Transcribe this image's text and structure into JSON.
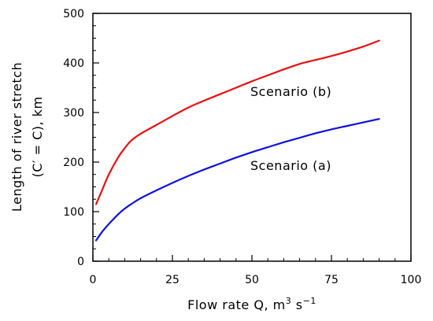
{
  "chart_data": {
    "type": "line",
    "title": "",
    "xlabel": "Flow rate Q, m",
    "xlabel_unit_super": "3",
    "xlabel_unit_mid": " s",
    "xlabel_unit_super2": "−1",
    "ylabel_line1": "Length of river stretch",
    "ylabel_line2": "(C′ = C), km",
    "xlim": [
      0,
      100
    ],
    "ylim": [
      0,
      500
    ],
    "xticks": [
      0,
      25,
      50,
      75,
      100
    ],
    "yticks": [
      0,
      100,
      200,
      300,
      400,
      500
    ],
    "x_minor_step": 5,
    "y_minor_step": 25,
    "grid": false,
    "series": [
      {
        "name": "Scenario (a)",
        "color": "#1010e0",
        "x": [
          1,
          3,
          5,
          8,
          10,
          12,
          15,
          20,
          25,
          30,
          35,
          40,
          45,
          50,
          55,
          60,
          65,
          70,
          75,
          80,
          85,
          90
        ],
        "y": [
          42,
          60,
          75,
          95,
          106,
          115,
          127,
          143,
          158,
          172,
          185,
          197,
          209,
          220,
          230,
          240,
          249,
          258,
          266,
          273,
          280,
          287
        ]
      },
      {
        "name": "Scenario (b)",
        "color": "#e81010",
        "x": [
          1,
          3,
          5,
          8,
          10,
          12,
          15,
          20,
          25,
          30,
          35,
          40,
          45,
          50,
          55,
          60,
          65,
          70,
          75,
          80,
          85,
          90
        ],
        "y": [
          115,
          145,
          175,
          210,
          228,
          243,
          257,
          275,
          293,
          310,
          324,
          337,
          350,
          363,
          375,
          387,
          398,
          406,
          414,
          423,
          433,
          445
        ]
      }
    ]
  }
}
